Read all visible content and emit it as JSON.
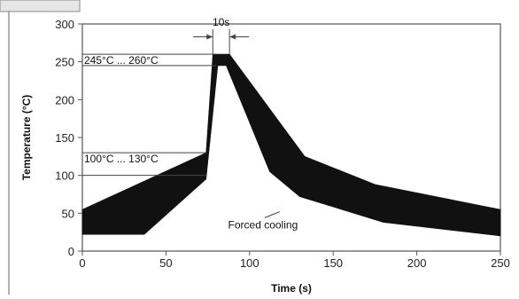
{
  "chart_data": {
    "type": "area",
    "title": "",
    "xlabel": "Time (s)",
    "ylabel": "Temperature (°C)",
    "xlim": [
      0,
      250
    ],
    "ylim": [
      0,
      300
    ],
    "x_ticks": [
      0,
      50,
      100,
      150,
      200,
      250
    ],
    "y_ticks": [
      0,
      50,
      100,
      150,
      200,
      250,
      300
    ],
    "grid": false,
    "band": {
      "name": "",
      "upper": [
        {
          "x": 0,
          "y": 55
        },
        {
          "x": 74,
          "y": 130
        },
        {
          "x": 78,
          "y": 260
        },
        {
          "x": 88,
          "y": 260
        },
        {
          "x": 133,
          "y": 125
        },
        {
          "x": 175,
          "y": 88
        },
        {
          "x": 250,
          "y": 55
        }
      ],
      "lower": [
        {
          "x": 0,
          "y": 22
        },
        {
          "x": 37,
          "y": 22
        },
        {
          "x": 74,
          "y": 95
        },
        {
          "x": 81,
          "y": 245
        },
        {
          "x": 86,
          "y": 245
        },
        {
          "x": 112,
          "y": 105
        },
        {
          "x": 130,
          "y": 72
        },
        {
          "x": 180,
          "y": 38
        },
        {
          "x": 250,
          "y": 20
        }
      ]
    },
    "annotations": {
      "peak_range": {
        "label": "245°C ... 260°C",
        "y_low": 245,
        "y_high": 260
      },
      "preheat_range": {
        "label": "100°C ... 130°C",
        "y_low": 100,
        "y_high": 130
      },
      "duration": {
        "label": "10s",
        "x_start": 78,
        "x_end": 88
      },
      "cooling": {
        "label": "Forced cooling",
        "x": 108,
        "y": 30
      }
    }
  },
  "header": {
    "tab_label": ""
  }
}
